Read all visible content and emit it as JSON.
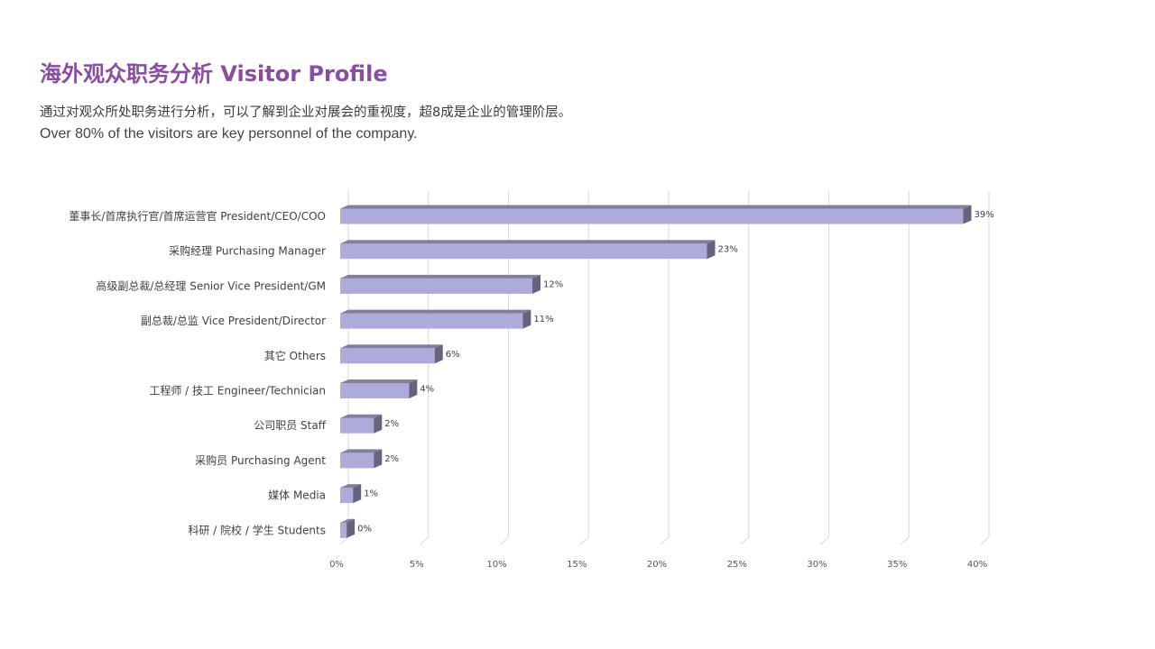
{
  "title": "海外观众职务分析  Visitor Profile",
  "subtitle_cn": "通过对观众所处职务进行分析，可以了解到企业对展会的重视度，超8成是企业的管理阶层。",
  "subtitle_en": "Over 80% of the visitors are key personnel of the company.",
  "colors": {
    "title": "#8B4CA3",
    "bar_front": "#ADABD9",
    "bar_top": "#827F9E",
    "bar_side": "#66637F",
    "grid": "#d9d9d9"
  },
  "chart_data": {
    "type": "bar",
    "orientation": "horizontal",
    "categories": [
      "董事长/首席执行官/首席运营官 President/CEO/COO",
      "采购经理 Purchasing Manager",
      "高级副总裁/总经理 Senior Vice President/GM",
      "副总裁/总监 Vice President/Director",
      "其它 Others",
      "工程师 / 技工  Engineer/Technician",
      "公司职员 Staff",
      "采购员 Purchasing Agent",
      "媒体 Media",
      "科研 / 院校 / 学生  Students"
    ],
    "values": [
      39,
      23,
      12,
      11,
      6,
      4,
      2,
      2,
      1,
      0
    ],
    "value_labels": [
      "39%",
      "23%",
      "12%",
      "11%",
      "6%",
      "4%",
      "2%",
      "2%",
      "1%",
      "0%"
    ],
    "actual_values": [
      38.9,
      22.9,
      12.0,
      11.4,
      5.9,
      4.3,
      2.1,
      2.1,
      0.8,
      0.4
    ],
    "xlim": [
      0,
      40
    ],
    "x_ticks": [
      "0%",
      "5%",
      "10%",
      "15%",
      "20%",
      "25%",
      "30%",
      "35%",
      "40%"
    ],
    "grid": true,
    "style": "3d"
  }
}
